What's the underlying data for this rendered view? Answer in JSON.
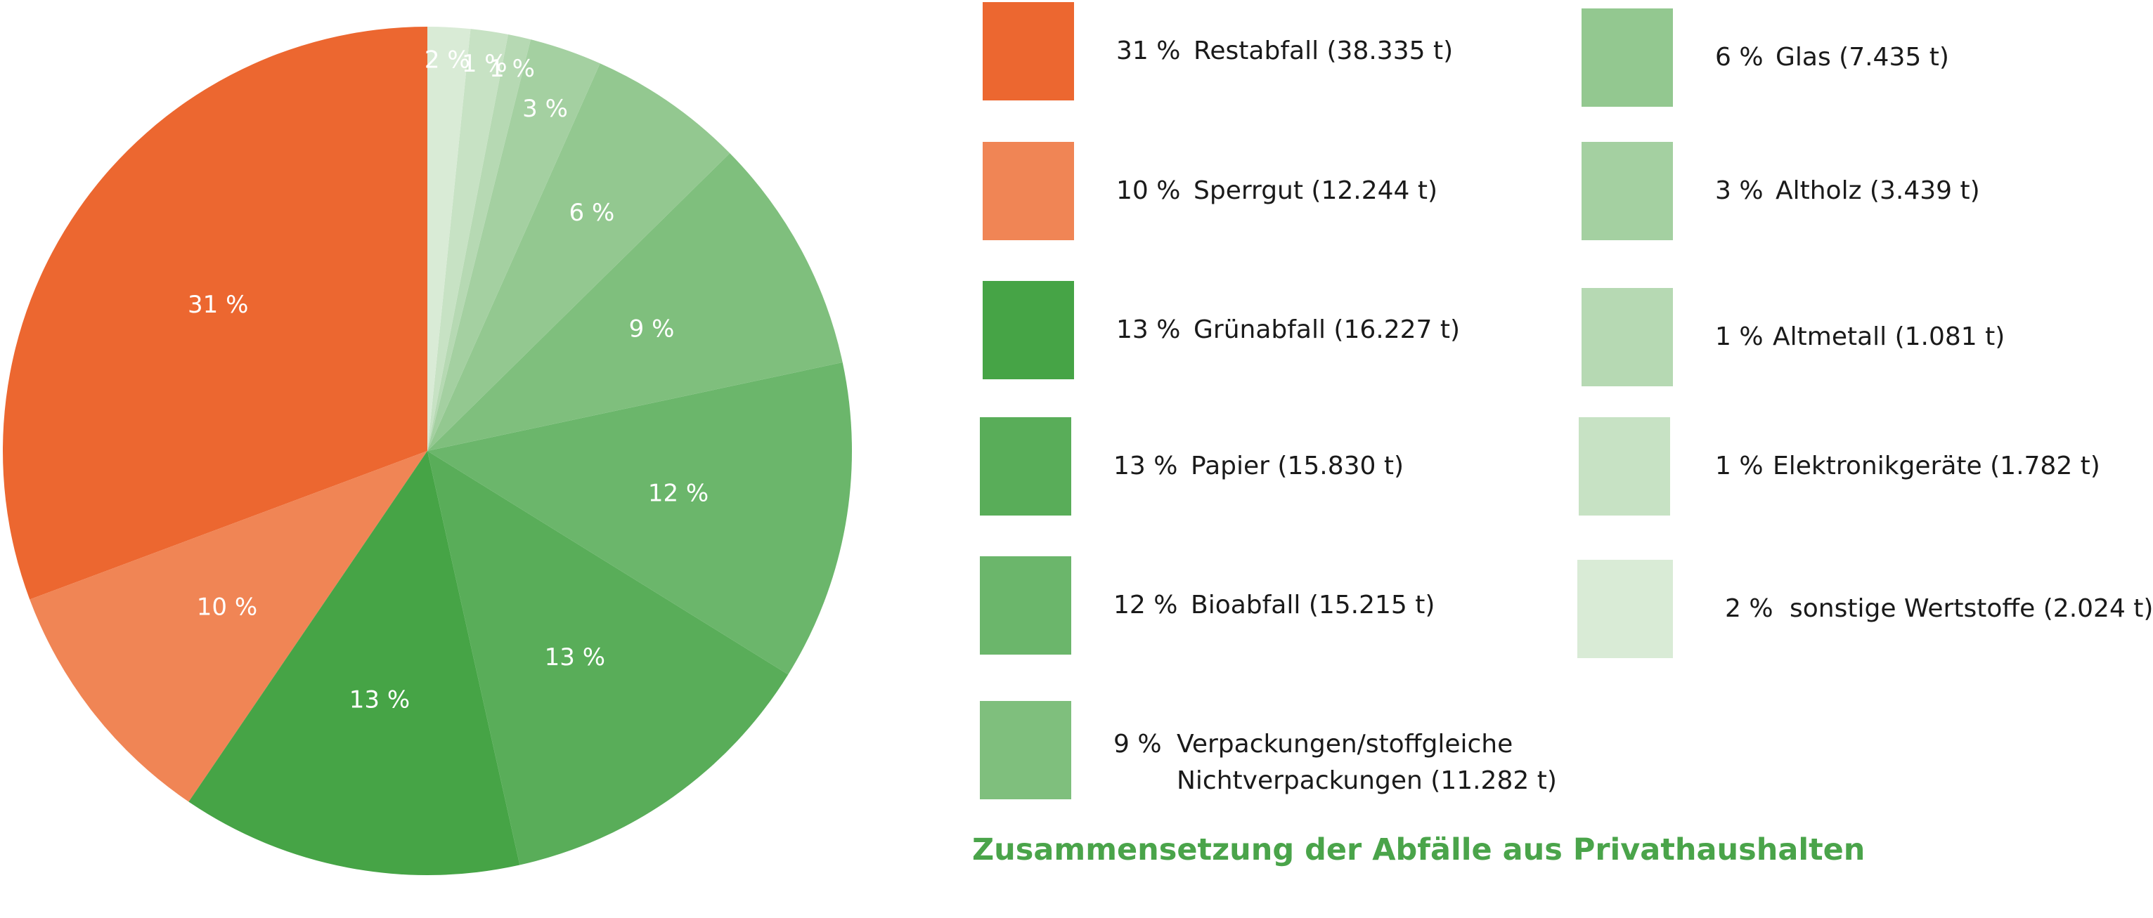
{
  "chart_data": {
    "type": "pie",
    "title": "Zusammensetzung der Abfälle aus Privathaushalten",
    "legend_position": "right",
    "slices": [
      {
        "label": "31 %",
        "legend": "Restabfall (38.335 t)",
        "pct_text": "31 %",
        "value": 38335,
        "color": "#ec6730"
      },
      {
        "label": "10 %",
        "legend": "Sperrgut (12.244 t)",
        "pct_text": "10 %",
        "value": 12244,
        "color": "#f08555"
      },
      {
        "label": "13 %",
        "legend": "Grünabfall (16.227 t)",
        "pct_text": "13 %",
        "value": 16227,
        "color": "#46a446"
      },
      {
        "label": "13 %",
        "legend": "Papier (15.830 t)",
        "pct_text": "13 %",
        "value": 15830,
        "color": "#59ad59"
      },
      {
        "label": "12 %",
        "legend": "Bioabfall (15.215 t)",
        "pct_text": "12 %",
        "value": 15215,
        "color": "#6bb66b"
      },
      {
        "label": "9 %",
        "legend": "Verpackungen/stoffgleiche Nichtverpackungen (11.282 t)",
        "legend_line1": "Verpackungen/stoffgleiche",
        "legend_line2": "Nichtverpackungen (11.282 t)",
        "pct_text": "9 %",
        "value": 11282,
        "color": "#7fbf7d"
      },
      {
        "label": "6 %",
        "legend": "Glas (7.435 t)",
        "pct_text": "6 %",
        "value": 7435,
        "color": "#93c890"
      },
      {
        "label": "3 %",
        "legend": "Altholz (3.439 t)",
        "pct_text": "3 %",
        "value": 3439,
        "color": "#a4d0a1"
      },
      {
        "label": "1 %",
        "legend": "Altmetall (1.081 t)",
        "pct_text": "1 %",
        "value": 1081,
        "color": "#b6d9b3"
      },
      {
        "label": "1 %",
        "legend": "Elektronikgeräte (1.782 t)",
        "pct_text": "1 %",
        "value": 1782,
        "color": "#c7e2c4"
      },
      {
        "label": "2 %",
        "legend": "sonstige Wertstoffe (2.024 t)",
        "pct_text": "2 %",
        "value": 2024,
        "color": "#d9ebd6"
      }
    ]
  }
}
